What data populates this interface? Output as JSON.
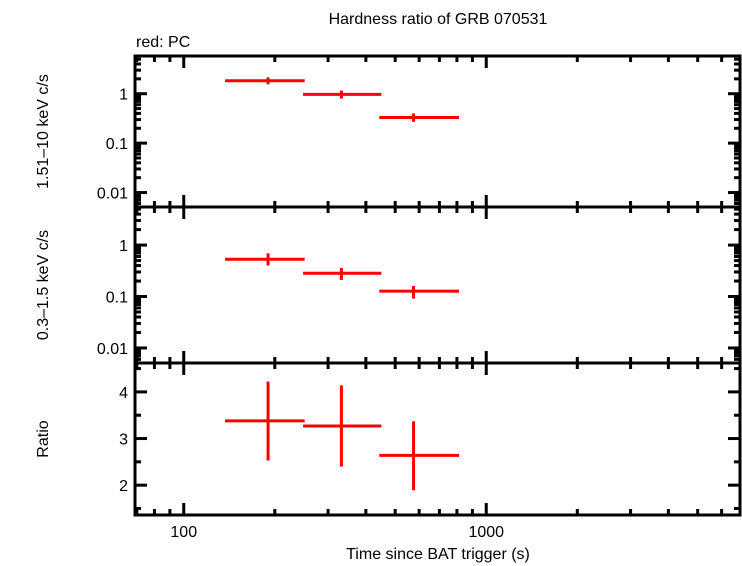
{
  "chart_data": {
    "type": "scatter",
    "title": "Hardness ratio of GRB 070531",
    "legend_note": "red: PC",
    "xlabel": "Time since BAT trigger (s)",
    "xscale": "log",
    "xlim": [
      69,
      6900
    ],
    "xticks": [
      100,
      1000
    ],
    "xtick_labels": [
      "100",
      "1000"
    ],
    "colors": {
      "PC": "#ff0000",
      "axes": "#000000"
    },
    "panels": [
      {
        "ylabel": "1.51–10 keV c/s",
        "yscale": "log",
        "ylim": [
          0.0051,
          5.8
        ],
        "yticks": [
          1,
          0.1,
          0.01
        ],
        "ytick_labels": [
          "1",
          "0.1",
          "0.01"
        ],
        "points": [
          {
            "x": 190,
            "xlo": 137,
            "xhi": 251,
            "y": 1.83,
            "ylo": 1.55,
            "yhi": 2.15
          },
          {
            "x": 332,
            "xlo": 248,
            "xhi": 450,
            "y": 0.97,
            "ylo": 0.8,
            "yhi": 1.16
          },
          {
            "x": 575,
            "xlo": 443,
            "xhi": 813,
            "y": 0.33,
            "ylo": 0.27,
            "yhi": 0.4
          }
        ]
      },
      {
        "ylabel": "0.3–1.5 keV c/s",
        "yscale": "log",
        "ylim": [
          0.0051,
          5.5
        ],
        "yticks": [
          1,
          0.1,
          0.01
        ],
        "ytick_labels": [
          "1",
          "0.1",
          "0.01"
        ],
        "points": [
          {
            "x": 190,
            "xlo": 137,
            "xhi": 251,
            "y": 0.53,
            "ylo": 0.4,
            "yhi": 0.69
          },
          {
            "x": 332,
            "xlo": 248,
            "xhi": 450,
            "y": 0.284,
            "ylo": 0.21,
            "yhi": 0.36
          },
          {
            "x": 575,
            "xlo": 443,
            "xhi": 813,
            "y": 0.127,
            "ylo": 0.091,
            "yhi": 0.16
          }
        ]
      },
      {
        "ylabel": "Ratio",
        "yscale": "linear",
        "ylim": [
          1.36,
          4.62
        ],
        "yticks": [
          4,
          3,
          2
        ],
        "ytick_labels": [
          "4",
          "3",
          "2"
        ],
        "points": [
          {
            "x": 190,
            "xlo": 137,
            "xhi": 251,
            "y": 3.38,
            "ylo": 2.53,
            "yhi": 4.22
          },
          {
            "x": 332,
            "xlo": 248,
            "xhi": 450,
            "y": 3.27,
            "ylo": 2.4,
            "yhi": 4.14
          },
          {
            "x": 575,
            "xlo": 443,
            "xhi": 813,
            "y": 2.64,
            "ylo": 1.89,
            "yhi": 3.37
          }
        ]
      }
    ]
  }
}
